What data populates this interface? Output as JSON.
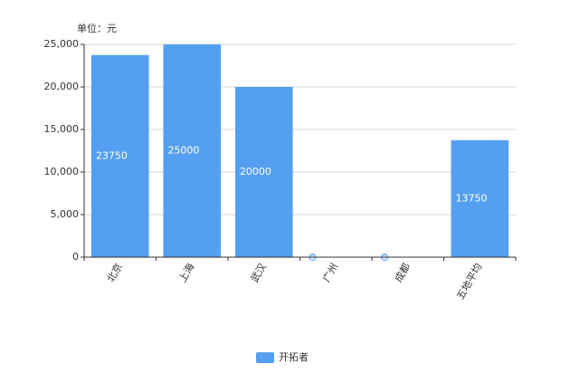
{
  "chart_data": {
    "type": "bar",
    "y_label": "单位：元",
    "categories": [
      "北京",
      "上海",
      "武汉",
      "广州",
      "成都",
      "五地平均"
    ],
    "series": [
      {
        "name": "开拓者",
        "color": "#559ff0",
        "values": [
          23750,
          25000,
          20000,
          0,
          0,
          13750
        ]
      }
    ],
    "ylim": [
      0,
      25000
    ],
    "yticks": [
      0,
      {
        "value": 5000,
        "label": "5,000"
      },
      {
        "value": 10000,
        "label": "10,000"
      },
      {
        "value": 15000,
        "label": "15,000"
      },
      {
        "value": 20000,
        "label": "20,000"
      },
      {
        "value": 25000,
        "label": "25,000"
      }
    ],
    "grid": true
  }
}
